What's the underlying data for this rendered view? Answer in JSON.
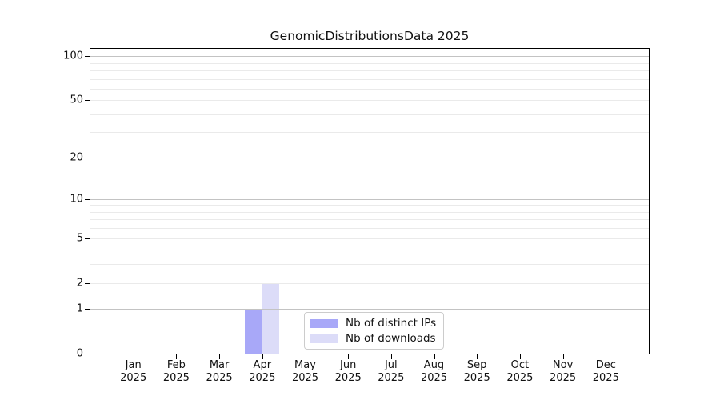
{
  "chart_data": {
    "type": "bar",
    "title": "GenomicDistributionsData 2025",
    "x_labels": [
      {
        "line1": "Jan",
        "line2": "2025"
      },
      {
        "line1": "Feb",
        "line2": "2025"
      },
      {
        "line1": "Mar",
        "line2": "2025"
      },
      {
        "line1": "Apr",
        "line2": "2025"
      },
      {
        "line1": "May",
        "line2": "2025"
      },
      {
        "line1": "Jun",
        "line2": "2025"
      },
      {
        "line1": "Jul",
        "line2": "2025"
      },
      {
        "line1": "Aug",
        "line2": "2025"
      },
      {
        "line1": "Sep",
        "line2": "2025"
      },
      {
        "line1": "Oct",
        "line2": "2025"
      },
      {
        "line1": "Nov",
        "line2": "2025"
      },
      {
        "line1": "Dec",
        "line2": "2025"
      }
    ],
    "series": [
      {
        "name": "Nb of distinct IPs",
        "color": "#a8a8f8",
        "values": [
          0,
          0,
          0,
          1,
          0,
          0,
          0,
          0,
          0,
          0,
          0,
          0
        ]
      },
      {
        "name": "Nb of downloads",
        "color": "#dcdcf8",
        "values": [
          0,
          0,
          0,
          2,
          0,
          0,
          0,
          0,
          0,
          0,
          0,
          0
        ]
      }
    ],
    "y_ticks": [
      0,
      1,
      2,
      5,
      10,
      20,
      50,
      100
    ],
    "y_major_gridlines": [
      1,
      10,
      100
    ],
    "y_minor_gridlines": [
      2,
      3,
      4,
      5,
      6,
      7,
      8,
      9,
      20,
      30,
      40,
      50,
      60,
      70,
      80,
      90
    ],
    "y_scale": "log1p",
    "ylim": [
      0,
      112
    ],
    "xlim": [
      -1,
      12
    ],
    "bar_width": 0.4,
    "grid": true,
    "legend_position": "lower-center"
  }
}
